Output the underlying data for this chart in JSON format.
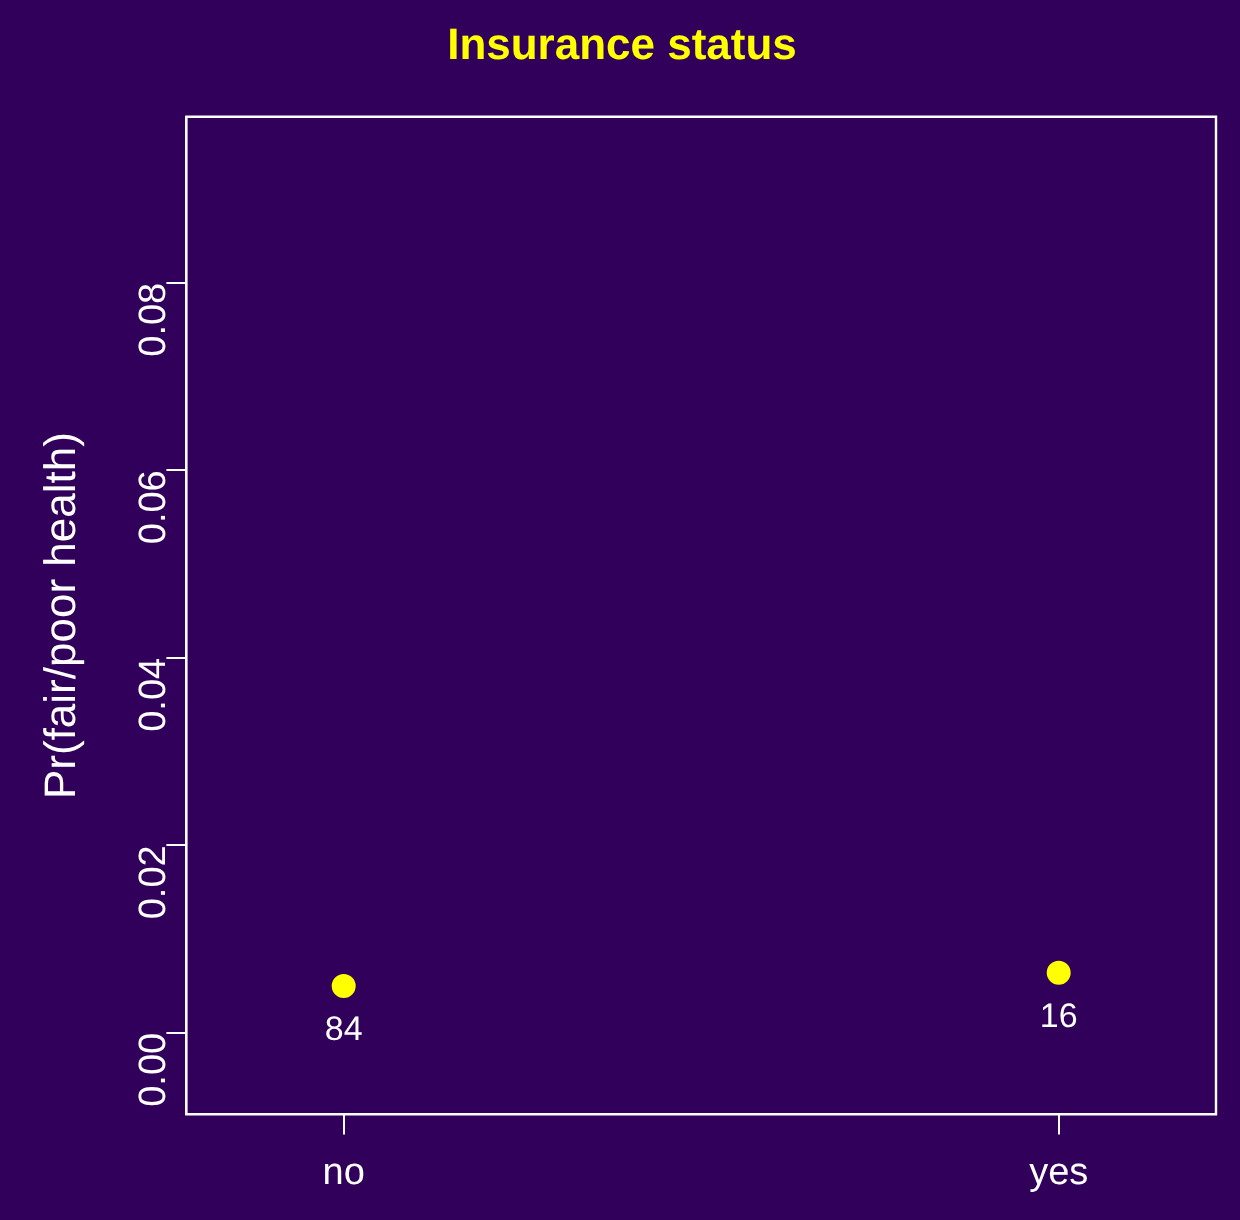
{
  "chart_data": {
    "type": "scatter",
    "title": "Insurance status",
    "ylabel": "Pr(fair/poor health)",
    "categories": [
      "no",
      "yes"
    ],
    "series": [
      {
        "color": "#ffff00",
        "values": [
          0.005,
          0.0064
        ]
      }
    ],
    "ylim": [
      -0.0087,
      0.0977
    ],
    "yticks": [
      {
        "value": 0,
        "label": "0.00"
      },
      {
        "value": 0.02,
        "label": "0.02"
      },
      {
        "value": 0.04,
        "label": "0.04"
      },
      {
        "value": 0.06,
        "label": "0.06"
      },
      {
        "value": 0.08,
        "label": "0.08"
      }
    ],
    "annotations": [
      {
        "text": "84",
        "x": "no",
        "y": 0.005
      },
      {
        "text": "16",
        "x": "yes",
        "y": 0.0064
      }
    ],
    "grid": false,
    "legend": false,
    "marker": "circle"
  }
}
